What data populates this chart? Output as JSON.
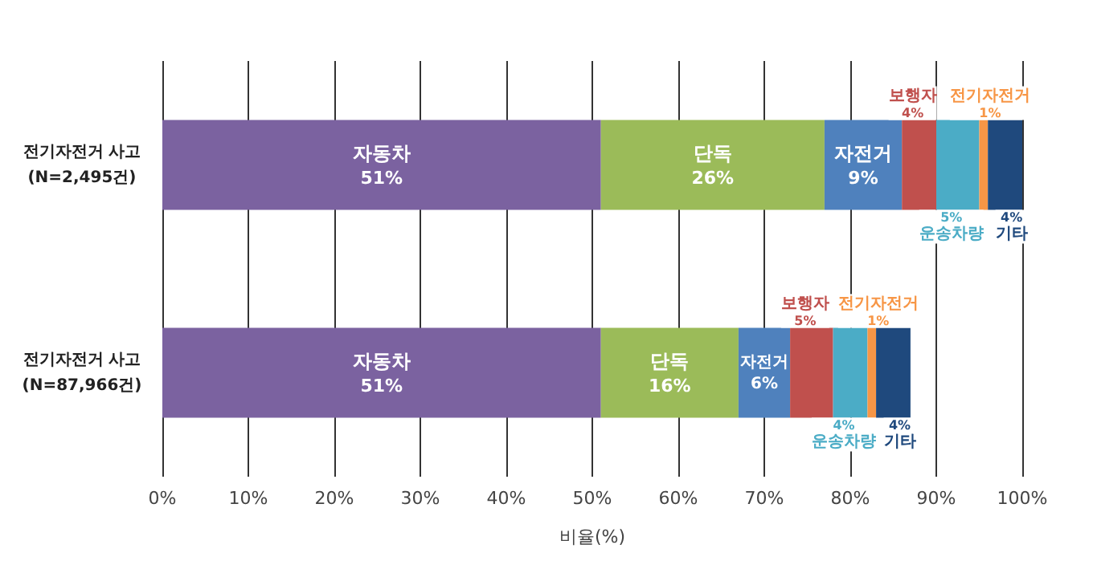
{
  "chart_data": {
    "type": "bar",
    "orientation": "horizontal",
    "stacked": true,
    "xlabel": "비율(%)",
    "categories": [
      "전기자전거 사고\n(N=2,495건)",
      "전기자전거 사고\n(N=87,966건)"
    ],
    "xlim": [
      0,
      100
    ],
    "xticks": [
      {
        "value": 0,
        "label": "0%"
      },
      {
        "value": 10,
        "label": "10%"
      },
      {
        "value": 20,
        "label": "20%"
      },
      {
        "value": 30,
        "label": "30%"
      },
      {
        "value": 40,
        "label": "40%"
      },
      {
        "value": 50,
        "label": "50%"
      },
      {
        "value": 60,
        "label": "60%"
      },
      {
        "value": 70,
        "label": "70%"
      },
      {
        "value": 80,
        "label": "80%"
      },
      {
        "value": 90,
        "label": "90%"
      },
      {
        "value": 100,
        "label": "100%"
      }
    ],
    "grid": "x",
    "legend": false,
    "series": [
      {
        "name": "자동차",
        "color": "#7b62a0",
        "values": [
          51,
          51
        ],
        "value_labels": [
          "51%",
          "51%"
        ]
      },
      {
        "name": "단독",
        "color": "#9bbb59",
        "values": [
          26,
          16
        ],
        "value_labels": [
          "26%",
          "16%"
        ]
      },
      {
        "name": "자전거",
        "color": "#4f81bd",
        "values": [
          9,
          6
        ],
        "value_labels": [
          "9%",
          "6%"
        ]
      },
      {
        "name": "보행자",
        "color": "#c0504d",
        "values": [
          4,
          5
        ],
        "value_labels": [
          "4%",
          "5%"
        ]
      },
      {
        "name": "운송차량",
        "color": "#4bacc6",
        "values": [
          5,
          4
        ],
        "value_labels": [
          "5%",
          "4%"
        ]
      },
      {
        "name": "전기자전거",
        "color": "#f79646",
        "values": [
          1,
          1
        ],
        "value_labels": [
          "1%",
          "1%"
        ]
      },
      {
        "name": "기타",
        "color": "#1f497d",
        "values": [
          4,
          4
        ],
        "value_labels": [
          "4%",
          "4%"
        ]
      }
    ]
  }
}
